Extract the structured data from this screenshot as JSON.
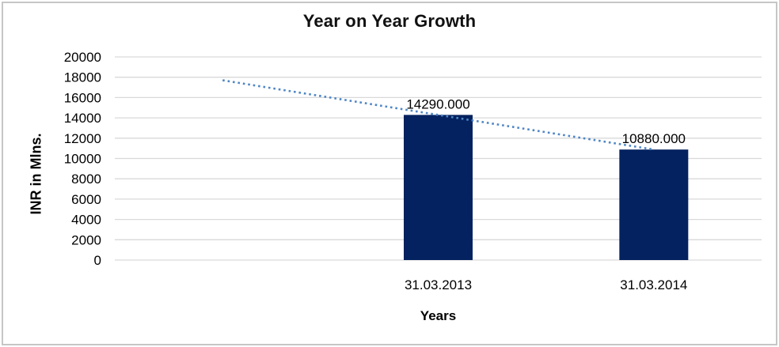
{
  "chart_data": {
    "type": "bar",
    "title": "Year on Year Growth",
    "xlabel": "Years",
    "ylabel": "INR in Mlns.",
    "categories": [
      "31.03.2013",
      "31.03.2014"
    ],
    "series": [
      {
        "name": "INR in Mlns.",
        "values": [
          14290,
          10880
        ]
      }
    ],
    "data_labels": [
      "14290.000",
      "10880.000"
    ],
    "ylim": [
      0,
      20000
    ],
    "y_tick_step": 2000,
    "y_ticks": [
      0,
      2000,
      4000,
      6000,
      8000,
      10000,
      12000,
      14000,
      16000,
      18000,
      20000
    ],
    "grid": true,
    "legend": false,
    "trendline": {
      "type": "linear",
      "style": "dotted",
      "start_value": 17700,
      "end_value": 10880
    }
  },
  "colors": {
    "bar": "#04225f",
    "trendline": "#4f86c6",
    "gridline": "#d9d9d9",
    "text": "#000000",
    "frame_border": "#c6c6c6"
  }
}
